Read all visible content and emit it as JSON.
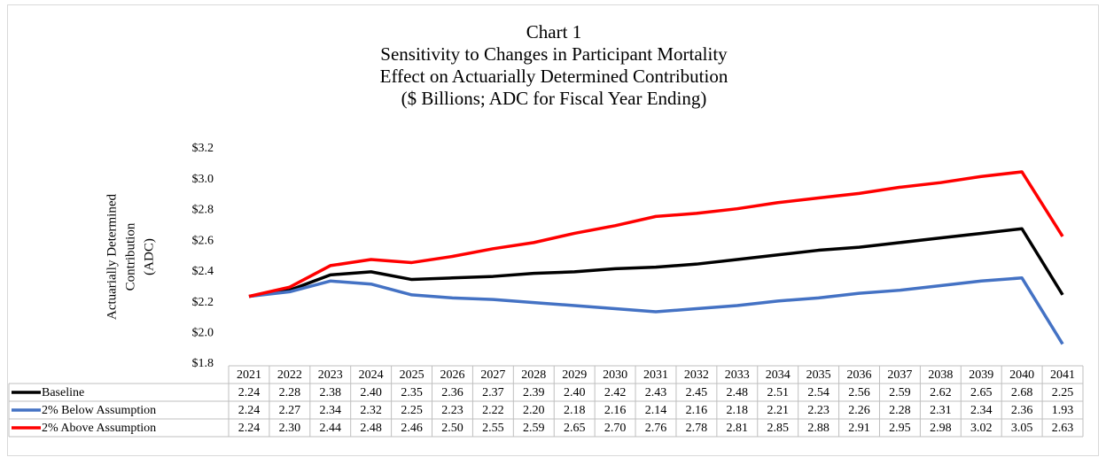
{
  "chart_data": {
    "type": "line",
    "title": [
      "Chart 1",
      "Sensitivity to Changes in Participant Mortality",
      "Effect on Actuarially Determined Contribution",
      "($ Billions; ADC for Fiscal Year Ending)"
    ],
    "y_label": [
      "Actuarially Determined",
      "Contribution",
      "(ADC)"
    ],
    "categories": [
      "2021",
      "2022",
      "2023",
      "2024",
      "2025",
      "2026",
      "2027",
      "2028",
      "2029",
      "2030",
      "2031",
      "2032",
      "2033",
      "2034",
      "2035",
      "2036",
      "2037",
      "2038",
      "2039",
      "2040",
      "2041"
    ],
    "series": [
      {
        "name": "Baseline",
        "color": "#000000",
        "values": [
          2.24,
          2.28,
          2.38,
          2.4,
          2.35,
          2.36,
          2.37,
          2.39,
          2.4,
          2.42,
          2.43,
          2.45,
          2.48,
          2.51,
          2.54,
          2.56,
          2.59,
          2.62,
          2.65,
          2.68,
          2.25
        ],
        "value_labels": [
          "2.24",
          "2.28",
          "2.38",
          "2.40",
          "2.35",
          "2.36",
          "2.37",
          "2.39",
          "2.40",
          "2.42",
          "2.43",
          "2.45",
          "2.48",
          "2.51",
          "2.54",
          "2.56",
          "2.59",
          "2.62",
          "2.65",
          "2.68",
          "2.25"
        ]
      },
      {
        "name": "2% Below Assumption",
        "color": "#4472c4",
        "values": [
          2.24,
          2.27,
          2.34,
          2.32,
          2.25,
          2.23,
          2.22,
          2.2,
          2.18,
          2.16,
          2.14,
          2.16,
          2.18,
          2.21,
          2.23,
          2.26,
          2.28,
          2.31,
          2.34,
          2.36,
          1.93
        ],
        "value_labels": [
          "2.24",
          "2.27",
          "2.34",
          "2.32",
          "2.25",
          "2.23",
          "2.22",
          "2.20",
          "2.18",
          "2.16",
          "2.14",
          "2.16",
          "2.18",
          "2.21",
          "2.23",
          "2.26",
          "2.28",
          "2.31",
          "2.34",
          "2.36",
          "1.93"
        ]
      },
      {
        "name": "2% Above Assumption",
        "color": "#ff0000",
        "values": [
          2.24,
          2.3,
          2.44,
          2.48,
          2.46,
          2.5,
          2.55,
          2.59,
          2.65,
          2.7,
          2.76,
          2.78,
          2.81,
          2.85,
          2.88,
          2.91,
          2.95,
          2.98,
          3.02,
          3.05,
          2.63
        ],
        "value_labels": [
          "2.24",
          "2.30",
          "2.44",
          "2.48",
          "2.46",
          "2.50",
          "2.55",
          "2.59",
          "2.65",
          "2.70",
          "2.76",
          "2.78",
          "2.81",
          "2.85",
          "2.88",
          "2.91",
          "2.95",
          "2.98",
          "3.02",
          "3.05",
          "2.63"
        ]
      }
    ],
    "ylim": [
      1.8,
      3.2
    ],
    "yticks": [
      {
        "value": 1.8,
        "label": "$1.8"
      },
      {
        "value": 2,
        "label": "$2.0"
      },
      {
        "value": 2.2,
        "label": "$2.2"
      },
      {
        "value": 2.4,
        "label": "$2.4"
      },
      {
        "value": 2.6,
        "label": "$2.6"
      },
      {
        "value": 2.8,
        "label": "$2.8"
      },
      {
        "value": 3,
        "label": "$3.0"
      },
      {
        "value": 3.2,
        "label": "$3.2"
      }
    ],
    "grid": false
  }
}
